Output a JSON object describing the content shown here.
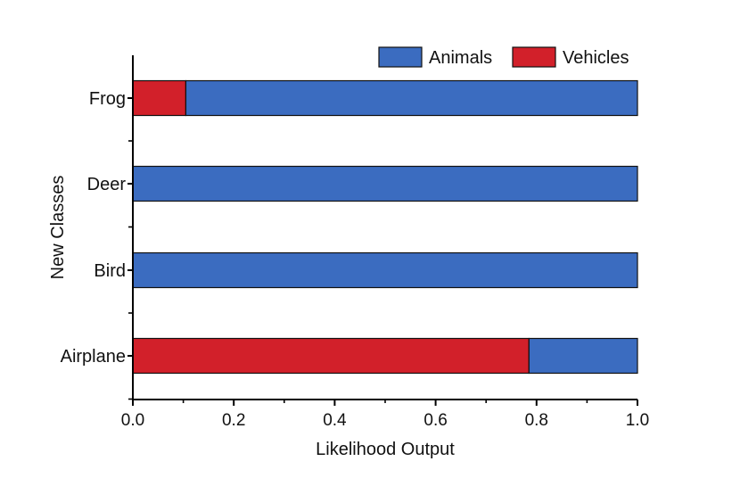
{
  "chart_data": {
    "type": "bar",
    "orientation": "horizontal",
    "stacked": true,
    "title": "",
    "xlabel": "Likelihood Output",
    "ylabel": "New Classes",
    "xlim": [
      0.0,
      1.0
    ],
    "xticks": [
      0.0,
      0.2,
      0.4,
      0.6,
      0.8,
      1.0
    ],
    "xtick_labels": [
      "0.0",
      "0.2",
      "0.4",
      "0.6",
      "0.8",
      "1.0"
    ],
    "categories": [
      "Airplane",
      "Bird",
      "Deer",
      "Frog"
    ],
    "series": [
      {
        "name": "Vehicles",
        "color": "#d2202a",
        "values": [
          0.785,
          0.0,
          0.0,
          0.105
        ]
      },
      {
        "name": "Animals",
        "color": "#3b6cc0",
        "values": [
          0.215,
          1.0,
          1.0,
          0.895
        ]
      }
    ],
    "legend": {
      "position": "top-right",
      "order": [
        "Animals",
        "Vehicles"
      ]
    },
    "grid": false
  }
}
